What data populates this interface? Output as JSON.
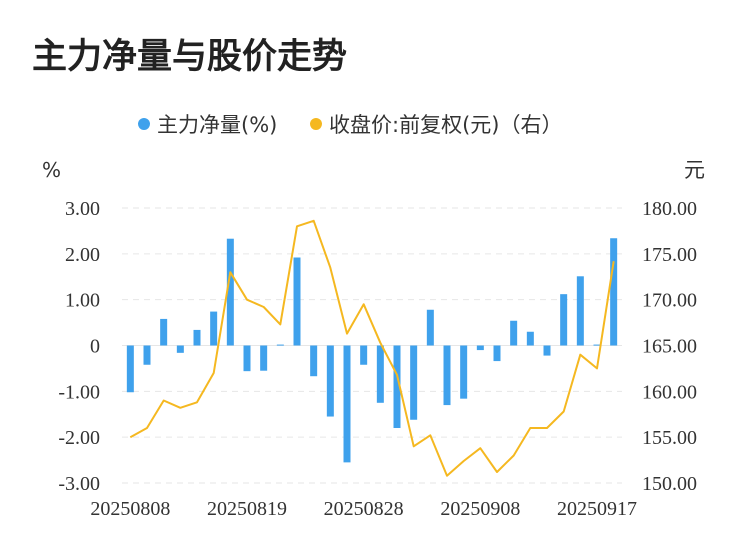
{
  "chart_data": {
    "type": "bar+line",
    "title": "主力净量与股价走势",
    "legend": [
      {
        "label": "主力净量(%)",
        "color": "#3fa1ec",
        "kind": "bar"
      },
      {
        "label": "收盘价:前复权(元)（右）",
        "color": "#f5b820",
        "kind": "line"
      }
    ],
    "left_axis": {
      "unit": "%",
      "ylim": [
        -3,
        3
      ],
      "ticks": [
        3,
        2,
        1,
        0,
        -1,
        -2,
        -3
      ],
      "tick_labels": [
        "3.00",
        "2.00",
        "1.00",
        "0",
        "-1.00",
        "-2.00",
        "-3.00"
      ]
    },
    "right_axis": {
      "unit": "元",
      "ylim": [
        150,
        180
      ],
      "ticks": [
        180,
        175,
        170,
        165,
        160,
        155,
        150
      ],
      "tick_labels": [
        "180.00",
        "175.00",
        "170.00",
        "165.00",
        "160.00",
        "155.00",
        "150.00"
      ]
    },
    "x_tick_labels": [
      {
        "index": 0,
        "label": "20250808"
      },
      {
        "index": 7,
        "label": "20250819"
      },
      {
        "index": 14,
        "label": "20250828"
      },
      {
        "index": 21,
        "label": "20250908"
      },
      {
        "index": 28,
        "label": "20250917"
      }
    ],
    "series": [
      {
        "name": "主力净量(%)",
        "type": "bar",
        "values": [
          -1.02,
          -0.42,
          0.58,
          -0.16,
          0.34,
          0.74,
          2.33,
          -0.56,
          -0.55,
          0.02,
          1.92,
          -0.67,
          -1.55,
          -2.55,
          -0.42,
          -1.25,
          -1.8,
          -1.62,
          0.78,
          -1.3,
          -1.16,
          -0.1,
          -0.34,
          0.54,
          0.3,
          -0.22,
          1.12,
          1.51,
          0.02,
          2.34
        ]
      },
      {
        "name": "收盘价:前复权(元)",
        "type": "line",
        "values": [
          155.0,
          156.0,
          159.0,
          158.2,
          158.8,
          162.0,
          173.0,
          170.0,
          169.2,
          167.3,
          178.0,
          178.6,
          173.5,
          166.3,
          169.5,
          165.3,
          161.8,
          154.0,
          155.2,
          150.8,
          152.4,
          153.8,
          151.2,
          153.0,
          156.0,
          156.0,
          157.8,
          164.0,
          162.5,
          174.2
        ]
      }
    ]
  }
}
